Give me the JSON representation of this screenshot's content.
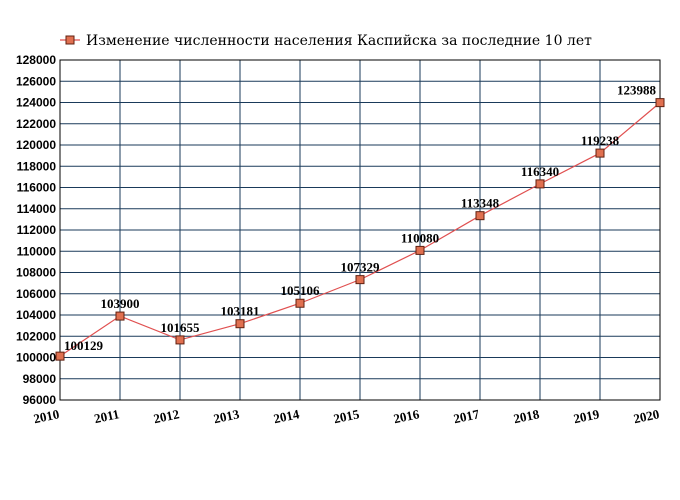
{
  "chart_data": {
    "type": "line",
    "title": "",
    "xlabel": "",
    "ylabel": "",
    "categories": [
      "2010",
      "2011",
      "2012",
      "2013",
      "2014",
      "2015",
      "2016",
      "2017",
      "2018",
      "2019",
      "2020"
    ],
    "series": [
      {
        "name": "Изменение численности населения Каспийска за последние 10 лет",
        "values": [
          100129,
          103900,
          101655,
          103181,
          105106,
          107329,
          110080,
          113348,
          116340,
          119238,
          123988
        ],
        "labels": [
          "100129",
          "103900",
          "101655",
          "103181",
          "105106",
          "107329",
          "110080",
          "113348",
          "116340",
          "119238",
          "123988"
        ]
      }
    ],
    "ylim": [
      96000,
      128000
    ],
    "ystep": 2000,
    "yticks": [
      "96000",
      "98000",
      "100000",
      "102000",
      "104000",
      "106000",
      "108000",
      "110000",
      "112000",
      "114000",
      "116000",
      "118000",
      "120000",
      "122000",
      "124000",
      "126000",
      "128000"
    ],
    "grid": true,
    "legend_position": "top",
    "colors": {
      "line": "#e05050",
      "marker_fill": "#e07050",
      "marker_stroke": "#602010",
      "grid": "#1a3a5a",
      "axis": "#000000"
    }
  }
}
